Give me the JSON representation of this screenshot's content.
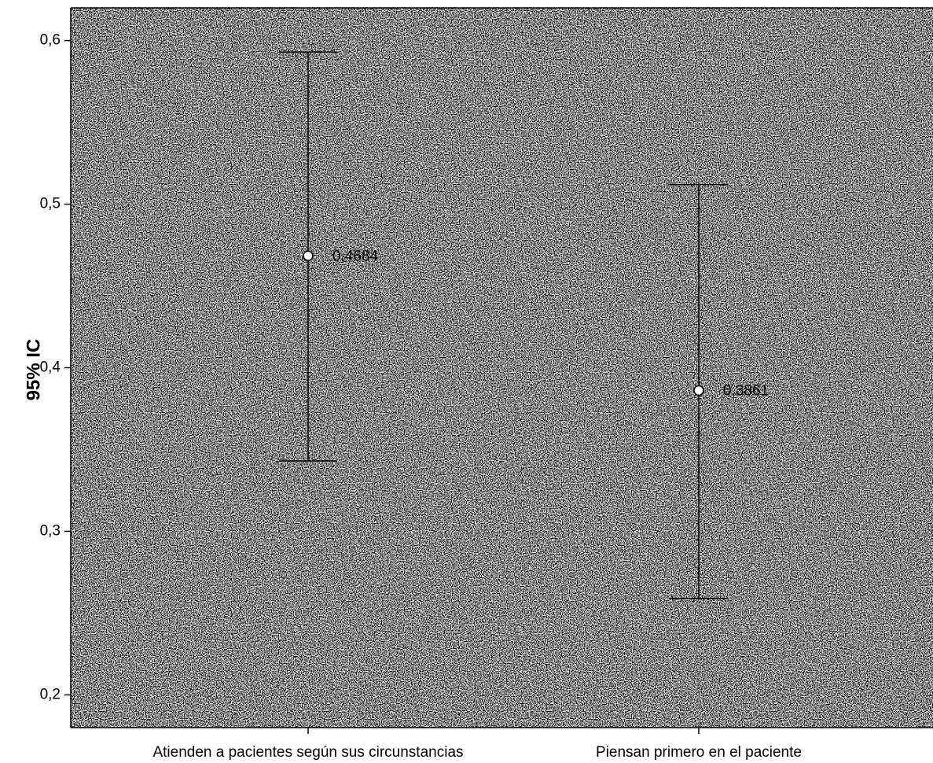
{
  "chart_data": {
    "type": "errorbar",
    "ylabel": "95% IC",
    "xlabel": "",
    "ylim": [
      0.18,
      0.62
    ],
    "yticks": [
      0.2,
      0.3,
      0.4,
      0.5,
      0.6
    ],
    "ytick_labels": [
      "0,2",
      "0,3",
      "0,4",
      "0,5",
      "0,6"
    ],
    "grid": false,
    "categories": [
      "Atienden a pacientes según sus circunstancias",
      "Piensan primero en el paciente"
    ],
    "points": [
      {
        "category": "Atienden a pacientes según sus circunstancias",
        "mean": 0.4684,
        "lower": 0.343,
        "upper": 0.593,
        "label": "0,4684"
      },
      {
        "category": "Piensan primero en el paciente",
        "mean": 0.3861,
        "lower": 0.259,
        "upper": 0.512,
        "label": "0,3861"
      }
    ],
    "background": "stippled-gray",
    "colors": {
      "line": "#000000",
      "frame": "#000000",
      "marker_fill": "#ffffff"
    }
  }
}
